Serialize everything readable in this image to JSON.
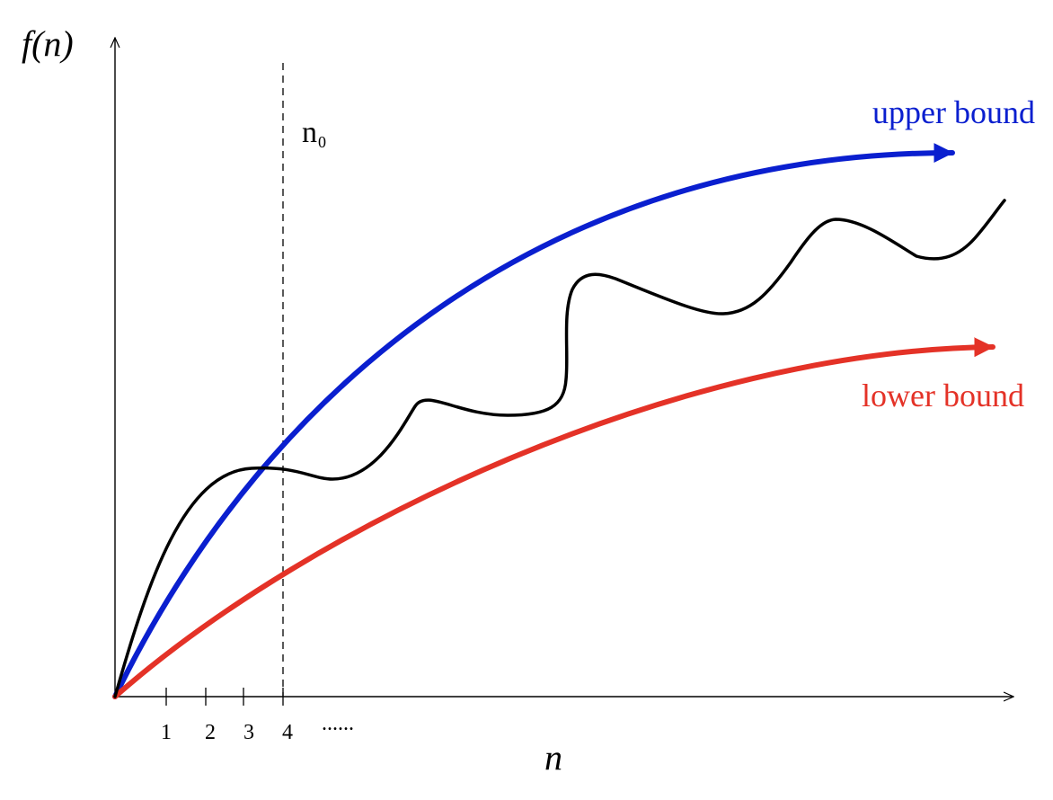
{
  "figure": {
    "y_axis_label": "f(n)",
    "x_axis_label": "n",
    "ticks": [
      "1",
      "2",
      "3",
      "4"
    ],
    "ellipsis": "......",
    "threshold_label": {
      "main": "n",
      "subscript": "0"
    },
    "upper_label": "upper bound",
    "lower_label": "lower bound",
    "colors": {
      "axis": "#000000",
      "function_curve": "#000000",
      "upper_bound": "#0a1fcf",
      "lower_bound": "#e43227",
      "threshold_line": "#000000"
    }
  }
}
